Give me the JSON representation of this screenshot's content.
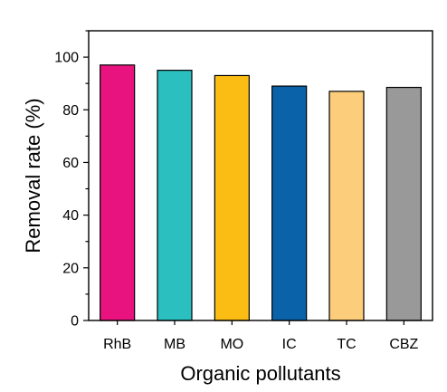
{
  "chart_data": {
    "type": "bar",
    "title": "",
    "xlabel": "Organic pollutants",
    "ylabel": "Removal rate (%)",
    "categories": [
      "RhB",
      "MB",
      "MO",
      "IC",
      "TC",
      "CBZ"
    ],
    "values": [
      97,
      95,
      93,
      89,
      87,
      88.5
    ],
    "colors": [
      "#e8137f",
      "#2cbfbf",
      "#fbbc14",
      "#0a63a8",
      "#fccd7a",
      "#999999"
    ],
    "ylim": [
      0,
      110
    ],
    "yticks": [
      0,
      20,
      40,
      60,
      80,
      100
    ],
    "grid": false,
    "legend": "none"
  }
}
